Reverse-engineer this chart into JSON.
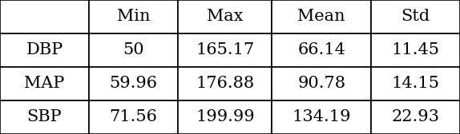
{
  "columns": [
    "",
    "Min",
    "Max",
    "Mean",
    "Std"
  ],
  "rows": [
    [
      "DBP",
      "50",
      "165.17",
      "66.14",
      "11.45"
    ],
    [
      "MAP",
      "59.96",
      "176.88",
      "90.78",
      "14.15"
    ],
    [
      "SBP",
      "71.56",
      "199.99",
      "134.19",
      "22.93"
    ]
  ],
  "background_color": "#ffffff",
  "edge_color": "#000000",
  "text_color": "#000000",
  "font_size": 15,
  "figsize": [
    5.74,
    1.68
  ],
  "dpi": 100
}
